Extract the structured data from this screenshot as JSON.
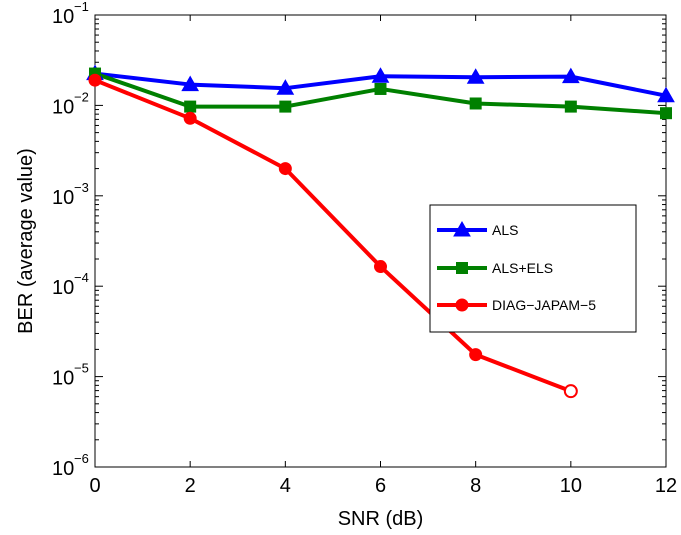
{
  "chart_data": {
    "type": "line",
    "xlabel": "SNR (dB)",
    "ylabel": "BER (average value)",
    "x_scale": "linear",
    "y_scale": "log",
    "xlim": [
      0,
      12
    ],
    "ylim": [
      1e-06,
      0.1
    ],
    "x_ticks": [
      "0",
      "2",
      "4",
      "6",
      "8",
      "10",
      "12"
    ],
    "y_ticks": [
      {
        "base": "10",
        "exp": "−6",
        "value": 1e-06
      },
      {
        "base": "10",
        "exp": "−5",
        "value": 1e-05
      },
      {
        "base": "10",
        "exp": "−4",
        "value": 0.0001
      },
      {
        "base": "10",
        "exp": "−3",
        "value": 0.001
      },
      {
        "base": "10",
        "exp": "−2",
        "value": 0.01
      },
      {
        "base": "10",
        "exp": "−1",
        "value": 0.1
      }
    ],
    "grid": false,
    "legend_position": "right",
    "series": [
      {
        "name": "ALS",
        "color": "#0000ff",
        "marker": "triangle",
        "x": [
          0,
          2,
          4,
          6,
          8,
          10,
          12
        ],
        "y": [
          0.0225,
          0.017,
          0.0155,
          0.021,
          0.0205,
          0.0208,
          0.0128
        ]
      },
      {
        "name": "ALS+ELS",
        "color": "#008000",
        "marker": "square",
        "x": [
          0,
          2,
          4,
          6,
          8,
          10,
          12
        ],
        "y": [
          0.0225,
          0.0097,
          0.0097,
          0.0152,
          0.0105,
          0.0097,
          0.0082
        ]
      },
      {
        "name": "DIAG−JAPAM−5",
        "color": "#ff0000",
        "marker": "circle",
        "x": [
          0,
          2,
          4,
          6,
          8,
          10
        ],
        "y": [
          0.019,
          0.0072,
          0.002,
          0.000165,
          1.75e-05,
          6.9e-06
        ]
      }
    ]
  }
}
